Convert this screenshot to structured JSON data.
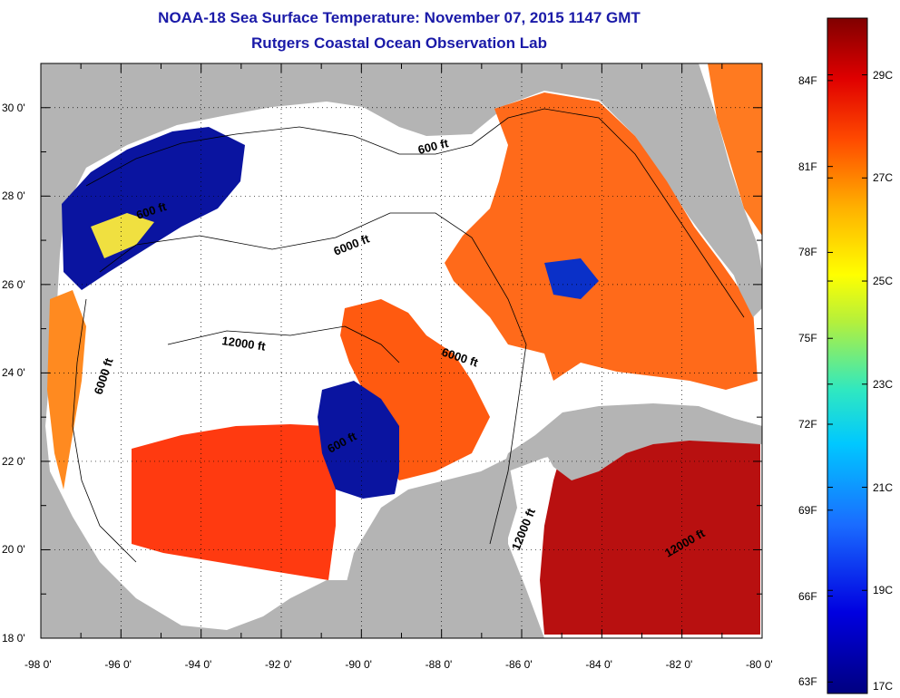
{
  "header": {
    "title_line1": "NOAA-18 Sea Surface Temperature:  November 07, 2015 1147 GMT",
    "title_line2": "Rutgers Coastal Ocean Observation Lab"
  },
  "map": {
    "lon_range": [
      -98,
      -80
    ],
    "lat_range": [
      18,
      31
    ],
    "lon_ticks": [
      "-98 0'",
      "-96 0'",
      "-94 0'",
      "-92 0'",
      "-90 0'",
      "-88 0'",
      "-86 0'",
      "-84 0'",
      "-82 0'",
      "-80 0'"
    ],
    "lat_ticks": [
      "18 0'",
      "20 0'",
      "22 0'",
      "24 0'",
      "26 0'",
      "28 0'",
      "30 0'"
    ],
    "contour_labels": [
      "600 ft",
      "600 ft",
      "6000 ft",
      "6000 ft",
      "6000 ft",
      "12000 ft",
      "600 ft",
      "12000 ft",
      "12000 ft"
    ],
    "colors": {
      "land": "#b4b4b4",
      "cloud": "#ffffff",
      "ocean_warm": "#ff6a1a",
      "ocean_hot": "#b81010",
      "ocean_cold": "#0a14a0"
    }
  },
  "colorbar": {
    "fahrenheit": [
      "63F",
      "66F",
      "69F",
      "72F",
      "75F",
      "78F",
      "81F",
      "84F"
    ],
    "celsius": [
      "17C",
      "19C",
      "21C",
      "23C",
      "25C",
      "27C",
      "29C"
    ]
  }
}
